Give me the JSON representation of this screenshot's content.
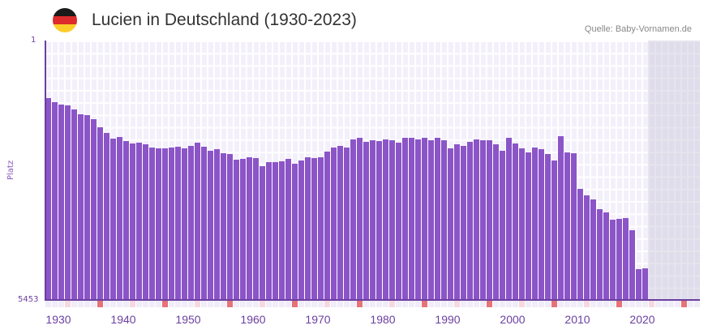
{
  "header": {
    "title": "Lucien in Deutschland (1930-2023)",
    "source": "Quelle: Baby-Vornamen.de",
    "flag_colors": [
      "#1a1a1a",
      "#dd2a2a",
      "#fccd2a"
    ]
  },
  "axis": {
    "y_top": "1",
    "y_bottom": "5453",
    "y_title": "Platz"
  },
  "colors": {
    "bar": "#8b55c8",
    "axis": "#6b3fa0",
    "decade_tick": "#e57378",
    "mid_tick": "#f6d8e0",
    "plain_tick": "#f0ecf8"
  },
  "chart_data": {
    "type": "bar",
    "title": "Lucien in Deutschland (1930-2023)",
    "xlabel": "",
    "ylabel": "Platz",
    "y_inverted": true,
    "ylim": [
      1,
      5453
    ],
    "x_tick_labels": [
      "1930",
      "1940",
      "1950",
      "1960",
      "1970",
      "1980",
      "1990",
      "2000",
      "2010",
      "2020"
    ],
    "x_range": [
      1930,
      2030
    ],
    "categories": [
      1930,
      1931,
      1932,
      1933,
      1934,
      1935,
      1936,
      1937,
      1938,
      1939,
      1940,
      1941,
      1942,
      1943,
      1944,
      1945,
      1946,
      1947,
      1948,
      1949,
      1950,
      1951,
      1952,
      1953,
      1954,
      1955,
      1956,
      1957,
      1958,
      1959,
      1960,
      1961,
      1962,
      1963,
      1964,
      1965,
      1966,
      1967,
      1968,
      1969,
      1970,
      1971,
      1972,
      1973,
      1974,
      1975,
      1976,
      1977,
      1978,
      1979,
      1980,
      1981,
      1982,
      1983,
      1984,
      1985,
      1986,
      1987,
      1988,
      1989,
      1990,
      1991,
      1992,
      1993,
      1994,
      1995,
      1996,
      1997,
      1998,
      1999,
      2000,
      2001,
      2002,
      2003,
      2004,
      2005,
      2006,
      2007,
      2008,
      2009,
      2010,
      2011,
      2012,
      2013,
      2014,
      2015,
      2016,
      2017,
      2018,
      2019,
      2020,
      2021,
      2022
    ],
    "values": [
      1210,
      1295,
      1346,
      1363,
      1448,
      1550,
      1567,
      1652,
      1823,
      1942,
      2061,
      2027,
      2112,
      2163,
      2146,
      2180,
      2248,
      2265,
      2265,
      2248,
      2231,
      2265,
      2214,
      2146,
      2231,
      2316,
      2282,
      2367,
      2384,
      2504,
      2487,
      2452,
      2469,
      2640,
      2555,
      2555,
      2538,
      2487,
      2589,
      2521,
      2452,
      2469,
      2452,
      2333,
      2248,
      2214,
      2248,
      2078,
      2044,
      2129,
      2095,
      2112,
      2078,
      2095,
      2146,
      2044,
      2044,
      2078,
      2044,
      2095,
      2044,
      2095,
      2265,
      2180,
      2214,
      2129,
      2078,
      2095,
      2095,
      2180,
      2316,
      2044,
      2163,
      2265,
      2350,
      2248,
      2282,
      2384,
      2521,
      2010,
      2350,
      2367,
      3117,
      3253,
      3338,
      3543,
      3611,
      3764,
      3747,
      3730,
      3985,
      4803,
      4786
    ]
  }
}
